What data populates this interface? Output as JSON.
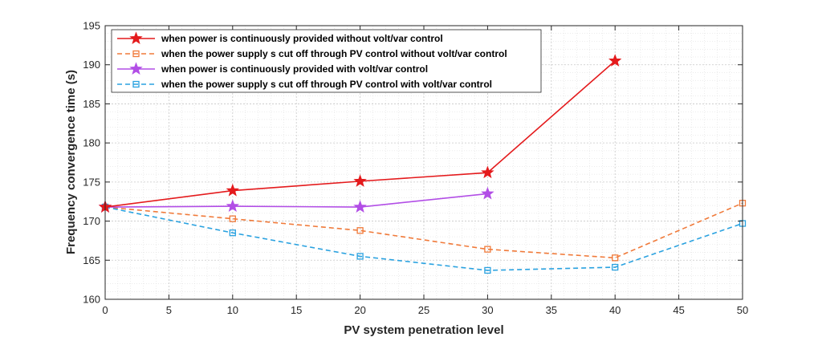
{
  "chart_data": {
    "type": "line",
    "xlabel": "PV system penetration level",
    "ylabel": "Frequency convergence time (s)",
    "xlim": [
      0,
      50
    ],
    "ylim": [
      160,
      195
    ],
    "xticks": [
      0,
      5,
      10,
      15,
      20,
      25,
      30,
      35,
      40,
      45,
      50
    ],
    "yticks": [
      160,
      165,
      170,
      175,
      180,
      185,
      190,
      195
    ],
    "grid": true,
    "minor_grid": true,
    "legend_position": "top-left",
    "series": [
      {
        "name": "when power is continuously provided without volt/var control",
        "color": "#e41a1c",
        "line_style": "solid",
        "marker": "star",
        "x": [
          0,
          10,
          20,
          30,
          40
        ],
        "y": [
          171.8,
          173.9,
          175.1,
          176.2,
          190.5
        ]
      },
      {
        "name": "when the power supply s cut off through PV control without volt/var control",
        "color": "#f07a3a",
        "line_style": "dashed",
        "marker": "square",
        "x": [
          0,
          10,
          20,
          30,
          40,
          50
        ],
        "y": [
          171.8,
          170.3,
          168.8,
          166.4,
          165.3,
          172.3
        ]
      },
      {
        "name": "when power is continuously provided with volt/var control",
        "color": "#b24ee6",
        "line_style": "solid",
        "marker": "star",
        "x": [
          0,
          10,
          20,
          30
        ],
        "y": [
          171.8,
          171.9,
          171.8,
          173.5
        ]
      },
      {
        "name": "when the power supply s cut off through PV control with volt/var control",
        "color": "#2aa2e0",
        "line_style": "dashed",
        "marker": "square",
        "x": [
          0,
          10,
          20,
          30,
          40,
          50
        ],
        "y": [
          171.8,
          168.5,
          165.5,
          163.7,
          164.1,
          169.7
        ]
      }
    ]
  }
}
